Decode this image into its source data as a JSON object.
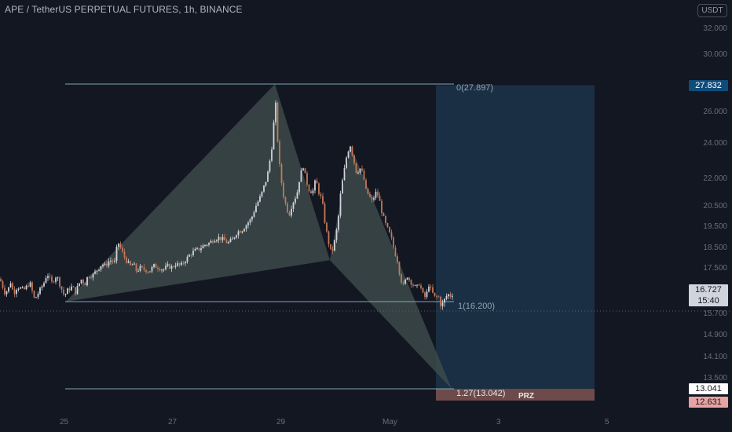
{
  "header": {
    "symbol_title": "APE / TetherUS PERPETUAL FUTURES, 1h, BINANCE",
    "currency": "USDT"
  },
  "colors": {
    "background": "#131722",
    "candle_up": "#d1d4dc",
    "candle_down": "#c07a5a",
    "fib_line": "#8fb3c7",
    "target_box": "#1c3449",
    "pattern_fill": "#3f4c4b",
    "prz_box": "#6e4a4a",
    "current_price_bg": "#d1d4dc",
    "target_price_bg": "#0f4c7a",
    "stop_price_bg": "#e8a3a3"
  },
  "y_axis": {
    "ticks": [
      "32.000",
      "30.000",
      "26.000",
      "24.000",
      "22.000",
      "20.500",
      "19.500",
      "18.500",
      "17.500",
      "15.700",
      "14.900",
      "14.100",
      "13.500"
    ]
  },
  "x_axis": {
    "ticks": [
      "25",
      "27",
      "29",
      "May",
      "3",
      "5"
    ]
  },
  "price_tags": {
    "target": "27.832",
    "current_price": "16.727",
    "countdown": "15:40",
    "prz_top": "13.041",
    "prz_bottom": "12.631"
  },
  "fib_levels": {
    "level_0": "0(27.897)",
    "level_1": "1(16.200)",
    "level_127": "1.27(13.042)"
  },
  "prz_label": "PRZ",
  "chart_data": {
    "type": "candlestick",
    "title": "APE / TetherUS PERPETUAL FUTURES, 1h, BINANCE",
    "x_ticks": [
      "25",
      "27",
      "29",
      "May",
      "3",
      "5"
    ],
    "ylim": [
      12.3,
      32.6
    ],
    "close_path": [
      [
        0,
        17.4
      ],
      [
        6,
        16.7
      ],
      [
        10,
        16.8
      ],
      [
        14,
        17.3
      ],
      [
        17,
        16.6
      ],
      [
        22,
        17.0
      ],
      [
        30,
        16.8
      ],
      [
        38,
        17.2
      ],
      [
        44,
        16.3
      ],
      [
        48,
        16.6
      ],
      [
        52,
        16.9
      ],
      [
        56,
        17.2
      ],
      [
        60,
        17.7
      ],
      [
        66,
        17.2
      ],
      [
        72,
        17.6
      ],
      [
        78,
        16.9
      ],
      [
        82,
        16.5
      ],
      [
        86,
        16.8
      ],
      [
        92,
        17.0
      ],
      [
        96,
        16.7
      ],
      [
        100,
        17.1
      ],
      [
        104,
        17.4
      ],
      [
        108,
        17.1
      ],
      [
        112,
        17.6
      ],
      [
        118,
        17.6
      ],
      [
        124,
        17.9
      ],
      [
        130,
        18.2
      ],
      [
        134,
        18.1
      ],
      [
        140,
        18.4
      ],
      [
        146,
        18.3
      ],
      [
        150,
        19.4
      ],
      [
        154,
        19.0
      ],
      [
        158,
        18.6
      ],
      [
        162,
        18.3
      ],
      [
        166,
        18.1
      ],
      [
        170,
        18.2
      ],
      [
        174,
        17.8
      ],
      [
        178,
        18.0
      ],
      [
        184,
        17.9
      ],
      [
        190,
        17.8
      ],
      [
        196,
        18.1
      ],
      [
        202,
        18.0
      ],
      [
        208,
        17.9
      ],
      [
        214,
        18.1
      ],
      [
        218,
        18.0
      ],
      [
        224,
        18.2
      ],
      [
        230,
        18.1
      ],
      [
        236,
        18.4
      ],
      [
        242,
        18.7
      ],
      [
        248,
        18.9
      ],
      [
        254,
        19.0
      ],
      [
        260,
        19.2
      ],
      [
        266,
        19.3
      ],
      [
        272,
        19.5
      ],
      [
        278,
        19.6
      ],
      [
        284,
        19.5
      ],
      [
        290,
        19.3
      ],
      [
        296,
        19.5
      ],
      [
        302,
        19.9
      ],
      [
        308,
        20.0
      ],
      [
        314,
        20.3
      ],
      [
        320,
        20.6
      ],
      [
        326,
        21.3
      ],
      [
        332,
        21.8
      ],
      [
        336,
        22.3
      ],
      [
        340,
        22.8
      ],
      [
        344,
        23.8
      ],
      [
        348,
        25.0
      ],
      [
        350,
        27.9
      ],
      [
        352,
        25.6
      ],
      [
        356,
        23.4
      ],
      [
        360,
        22.0
      ],
      [
        364,
        21.3
      ],
      [
        368,
        20.8
      ],
      [
        372,
        21.4
      ],
      [
        378,
        21.9
      ],
      [
        382,
        22.9
      ],
      [
        386,
        23.4
      ],
      [
        390,
        22.6
      ],
      [
        394,
        22.1
      ],
      [
        398,
        22.0
      ],
      [
        402,
        22.7
      ],
      [
        406,
        22.0
      ],
      [
        410,
        21.6
      ],
      [
        414,
        20.3
      ],
      [
        418,
        19.4
      ],
      [
        422,
        18.7
      ],
      [
        426,
        19.4
      ],
      [
        430,
        20.3
      ],
      [
        434,
        22.1
      ],
      [
        438,
        23.1
      ],
      [
        442,
        24.1
      ],
      [
        446,
        24.5
      ],
      [
        450,
        23.8
      ],
      [
        454,
        23.0
      ],
      [
        458,
        23.3
      ],
      [
        462,
        23.0
      ],
      [
        466,
        22.1
      ],
      [
        470,
        21.8
      ],
      [
        474,
        21.5
      ],
      [
        478,
        22.0
      ],
      [
        482,
        21.8
      ],
      [
        486,
        21.0
      ],
      [
        490,
        20.4
      ],
      [
        494,
        20.0
      ],
      [
        498,
        19.6
      ],
      [
        502,
        18.9
      ],
      [
        506,
        18.4
      ],
      [
        510,
        17.4
      ],
      [
        514,
        17.0
      ],
      [
        518,
        17.6
      ],
      [
        522,
        17.3
      ],
      [
        526,
        17.1
      ],
      [
        530,
        16.9
      ],
      [
        534,
        17.2
      ],
      [
        538,
        16.6
      ],
      [
        542,
        16.4
      ],
      [
        546,
        17.1
      ],
      [
        550,
        16.7
      ],
      [
        554,
        16.4
      ],
      [
        558,
        16.5
      ],
      [
        562,
        16.0
      ],
      [
        566,
        16.3
      ],
      [
        570,
        16.6
      ],
      [
        574,
        16.5
      ],
      [
        578,
        16.7
      ]
    ],
    "harmonic_pattern": {
      "X": 16.2,
      "A": 27.897,
      "B": 18.4,
      "C": 24.5,
      "D": 13.042
    },
    "fib_levels": {
      "0": 27.897,
      "1": 16.2,
      "1.27": 13.042
    },
    "target_price": 27.832,
    "current_price": 16.727,
    "prz": [
      12.631,
      13.041
    ]
  }
}
